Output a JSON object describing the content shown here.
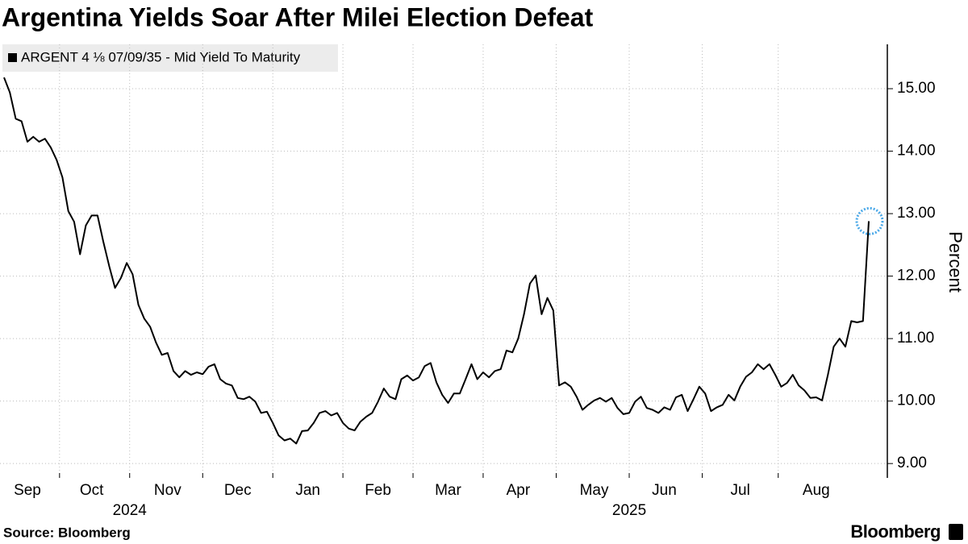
{
  "chart_data": {
    "type": "line",
    "title": "Argentina Yields Soar After Milei Election Defeat",
    "y_label": "Percent",
    "source": "Source: Bloomberg",
    "brand": "Bloomberg",
    "year_labels": [
      "2024",
      "2025"
    ],
    "categories": [
      null,
      null,
      null,
      null,
      "Sep",
      null,
      null,
      null,
      null,
      null,
      null,
      null,
      null,
      null,
      null,
      "Oct",
      null,
      null,
      null,
      null,
      null,
      null,
      null,
      null,
      null,
      null,
      null,
      null,
      "Nov",
      null,
      null,
      null,
      null,
      null,
      null,
      null,
      null,
      null,
      null,
      null,
      "Dec",
      null,
      null,
      null,
      null,
      null,
      null,
      null,
      null,
      null,
      null,
      null,
      "Jan",
      null,
      null,
      null,
      null,
      null,
      null,
      null,
      null,
      null,
      null,
      null,
      "Feb",
      null,
      null,
      null,
      null,
      null,
      null,
      null,
      null,
      null,
      null,
      null,
      "Mar",
      null,
      null,
      null,
      null,
      null,
      null,
      null,
      null,
      null,
      null,
      null,
      "Apr",
      null,
      null,
      null,
      null,
      null,
      null,
      null,
      null,
      null,
      null,
      null,
      null,
      "May",
      null,
      null,
      null,
      null,
      null,
      null,
      null,
      null,
      null,
      null,
      null,
      "Jun",
      null,
      null,
      null,
      null,
      null,
      null,
      null,
      null,
      null,
      null,
      null,
      null,
      "Jul",
      null,
      null,
      null,
      null,
      null,
      null,
      null,
      null,
      null,
      null,
      null,
      null,
      "Aug",
      null,
      null,
      null,
      null,
      null,
      null,
      null,
      null,
      null
    ],
    "series": [
      {
        "name": "ARGENT 4 ⅛ 07/09/35 - Mid Yield To Maturity",
        "color": "#000000",
        "values": [
          15.18,
          14.94,
          14.52,
          14.48,
          14.15,
          14.23,
          14.15,
          14.2,
          14.06,
          13.86,
          13.58,
          13.04,
          12.87,
          12.35,
          12.81,
          12.97,
          12.97,
          12.55,
          12.16,
          11.81,
          11.97,
          12.21,
          12.03,
          11.54,
          11.32,
          11.19,
          10.94,
          10.74,
          10.77,
          10.48,
          10.38,
          10.48,
          10.42,
          10.46,
          10.43,
          10.55,
          10.59,
          10.35,
          10.28,
          10.25,
          10.05,
          10.03,
          10.07,
          9.99,
          9.81,
          9.83,
          9.65,
          9.45,
          9.37,
          9.4,
          9.32,
          9.52,
          9.53,
          9.65,
          9.81,
          9.84,
          9.77,
          9.81,
          9.65,
          9.56,
          9.53,
          9.67,
          9.75,
          9.81,
          9.99,
          10.2,
          10.07,
          10.03,
          10.35,
          10.41,
          10.33,
          10.38,
          10.56,
          10.61,
          10.3,
          10.1,
          9.97,
          10.12,
          10.12,
          10.35,
          10.59,
          10.35,
          10.46,
          10.38,
          10.48,
          10.51,
          10.81,
          10.78,
          11.0,
          11.39,
          11.88,
          12.01,
          11.39,
          11.65,
          11.45,
          10.25,
          10.3,
          10.23,
          10.07,
          9.86,
          9.94,
          10.01,
          10.05,
          9.99,
          10.05,
          9.89,
          9.79,
          9.81,
          9.99,
          10.07,
          9.89,
          9.86,
          9.81,
          9.9,
          9.86,
          10.06,
          10.1,
          9.84,
          10.03,
          10.23,
          10.12,
          9.84,
          9.9,
          9.94,
          10.1,
          10.01,
          10.23,
          10.39,
          10.46,
          10.59,
          10.51,
          10.59,
          10.42,
          10.23,
          10.29,
          10.42,
          10.25,
          10.17,
          10.05,
          10.06,
          10.01,
          10.42,
          10.87,
          11.0,
          10.87,
          11.28,
          11.26,
          11.28,
          12.88
        ]
      }
    ],
    "ylim": [
      8.77,
      15.71
    ],
    "yticks": [
      {
        "value": 9,
        "label": "9.00"
      },
      {
        "value": 10,
        "label": "10.00"
      },
      {
        "value": 11,
        "label": "11.00"
      },
      {
        "value": 12,
        "label": "12.00"
      },
      {
        "value": 13,
        "label": "13.00"
      },
      {
        "value": 14,
        "label": "14.00"
      },
      {
        "value": 15,
        "label": "15.00"
      }
    ],
    "grid": true,
    "legend": "top-left"
  }
}
